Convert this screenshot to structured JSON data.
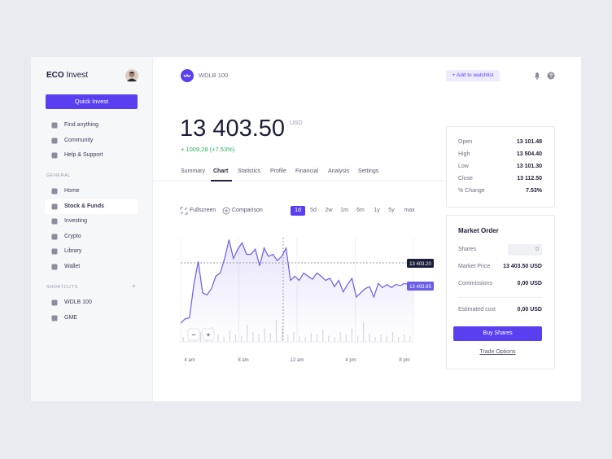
{
  "sidebar": {
    "brand_bold": "ECO",
    "brand": "Invest",
    "button": "Quick Invest",
    "menu": [
      "Find anything",
      "Community",
      "Help & Support"
    ],
    "general_label": "GENERAL",
    "general": [
      "Home",
      "Stock & Funds",
      "Investing",
      "Crypto",
      "Library",
      "Wallet"
    ],
    "shortcuts_label": "SHORTCUTS",
    "shortcuts_add": "+",
    "shortcuts": [
      "WDLB 100",
      "GME"
    ]
  },
  "header": {
    "ticker": "WDLB 100",
    "watchlist": "+ Add to watchlist"
  },
  "quote": {
    "price": "13 403.50",
    "currency": "USD",
    "change": "+ 1009,28 (+7.53%)"
  },
  "tabs": [
    "Summary",
    "Chart",
    "Statistics",
    "Profile",
    "Financial",
    "Analysis",
    "Settings"
  ],
  "controls": {
    "fullscreen": "Fullscreen",
    "comparison": "Comparison",
    "ranges": [
      "1d",
      "5d",
      "2w",
      "1m",
      "6m",
      "1y",
      "5y",
      "max"
    ]
  },
  "chart": {
    "ylim": [
      0,
      100
    ],
    "color": "#6c5ce7",
    "line": [
      18,
      22,
      23,
      55,
      77,
      47,
      45,
      51,
      63,
      66,
      80,
      98,
      80,
      89,
      95,
      84,
      84,
      89,
      73,
      90,
      82,
      84,
      78,
      82,
      90,
      59,
      63,
      59,
      66,
      63,
      60,
      66,
      63,
      59,
      61,
      53,
      59,
      48,
      55,
      61,
      43,
      47,
      51,
      53,
      43,
      56,
      52,
      55,
      52,
      55,
      54,
      56,
      55,
      55
    ],
    "volume": [
      20,
      35,
      15,
      40,
      25,
      60,
      30,
      20,
      45,
      30,
      25,
      70,
      40,
      30,
      55,
      35,
      90,
      60,
      30,
      40,
      25,
      20,
      35,
      30,
      50,
      25,
      20,
      40,
      30,
      55,
      25,
      80,
      35,
      20,
      30,
      25,
      40,
      20,
      30,
      25
    ],
    "x_labels": [
      "4 am",
      "8 am",
      "12 am",
      "4 pm",
      "8 pm"
    ],
    "price_labels": [
      "13 403.20",
      "13 403.65"
    ],
    "zoom": [
      "−",
      "+"
    ]
  },
  "stats": [
    [
      "Open",
      "13 101.48"
    ],
    [
      "High",
      "13 504.40"
    ],
    [
      "Low",
      "13 101.30"
    ],
    [
      "Close",
      "13 112.50"
    ],
    [
      "% Change",
      "7.53%"
    ]
  ],
  "order": {
    "title": "Market Order",
    "rows": [
      [
        "Shares",
        "0"
      ],
      [
        "Market Price",
        "13 403.50 USD"
      ],
      [
        "Commissions",
        "0,00 USD"
      ],
      [
        "Estimated cost",
        "0,00 USD"
      ]
    ],
    "button": "Buy Shares",
    "link": "Trade Options"
  }
}
